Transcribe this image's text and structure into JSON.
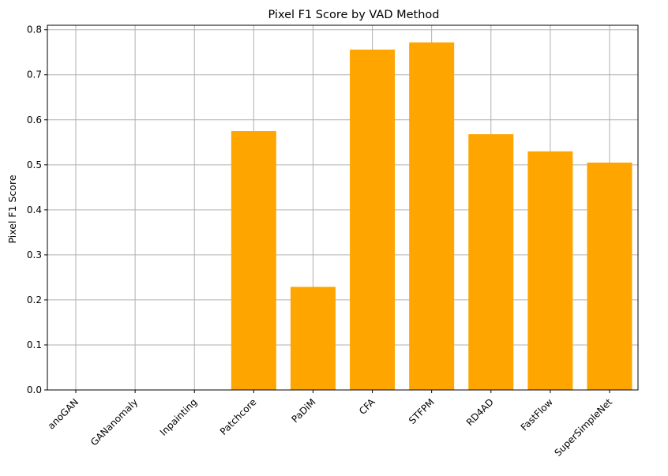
{
  "chart_data": {
    "type": "bar",
    "title": "Pixel F1 Score by VAD Method",
    "xlabel": "",
    "ylabel": "Pixel F1 Score",
    "categories": [
      "anoGAN",
      "GANanomaly",
      "Inpainting",
      "Patchcore",
      "PaDiM",
      "CFA",
      "STFPM",
      "RD4AD",
      "FastFlow",
      "SuperSimpleNet"
    ],
    "values": [
      0.0,
      0.0,
      0.0,
      0.575,
      0.229,
      0.756,
      0.772,
      0.568,
      0.53,
      0.505
    ],
    "ylim": [
      0,
      0.81
    ],
    "yticks": [
      "0.0",
      "0.1",
      "0.2",
      "0.3",
      "0.4",
      "0.5",
      "0.6",
      "0.7",
      "0.8"
    ],
    "grid": true,
    "bar_color": "#ffa500",
    "x_tick_rotation": "45deg"
  }
}
